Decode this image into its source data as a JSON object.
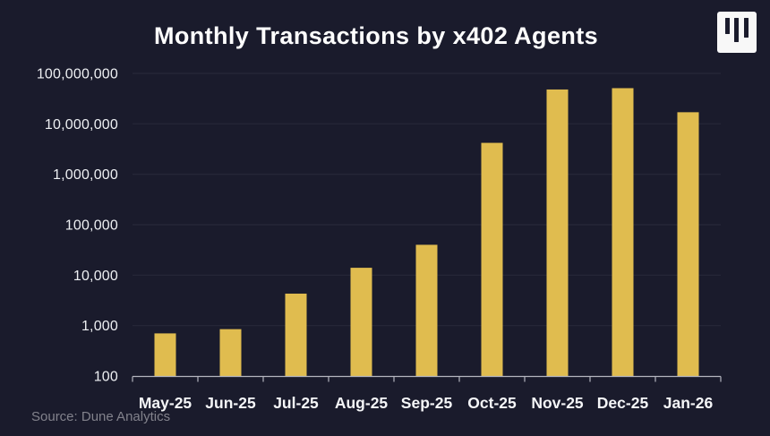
{
  "header": {
    "title": "Monthly Transactions by x402 Agents",
    "logo": "three-bars-logo"
  },
  "footer": {
    "source": "Source: Dune Analytics"
  },
  "colors": {
    "background": "#1a1b2c",
    "bar": "#e0bc4f",
    "title": "#ffffff",
    "y_label": "#eef0f3",
    "x_label": "#f5f6f8",
    "gridline": "#272839",
    "axis_line": "#b4b5bf",
    "source_text": "#82828c",
    "logo_bg": "#f8f8f8"
  },
  "chart_data": {
    "type": "bar",
    "scale": "log",
    "title": "Monthly Transactions by x402 Agents",
    "xlabel": "",
    "ylabel": "",
    "categories": [
      "May-25",
      "Jun-25",
      "Jul-25",
      "Aug-25",
      "Sep-25",
      "Oct-25",
      "Nov-25",
      "Dec-25",
      "Jan-26"
    ],
    "values": [
      700,
      850,
      4300,
      14000,
      40000,
      4200000,
      48000000,
      51000000,
      17000000
    ],
    "ylim": [
      100,
      100000000
    ],
    "y_ticks": [
      {
        "value": 100,
        "label": "100"
      },
      {
        "value": 1000,
        "label": "1,000"
      },
      {
        "value": 10000,
        "label": "10,000"
      },
      {
        "value": 100000,
        "label": "100,000"
      },
      {
        "value": 1000000,
        "label": "1,000,000"
      },
      {
        "value": 10000000,
        "label": "10,000,000"
      },
      {
        "value": 100000000,
        "label": "100,000,000"
      }
    ],
    "grid": true,
    "legend": false
  }
}
